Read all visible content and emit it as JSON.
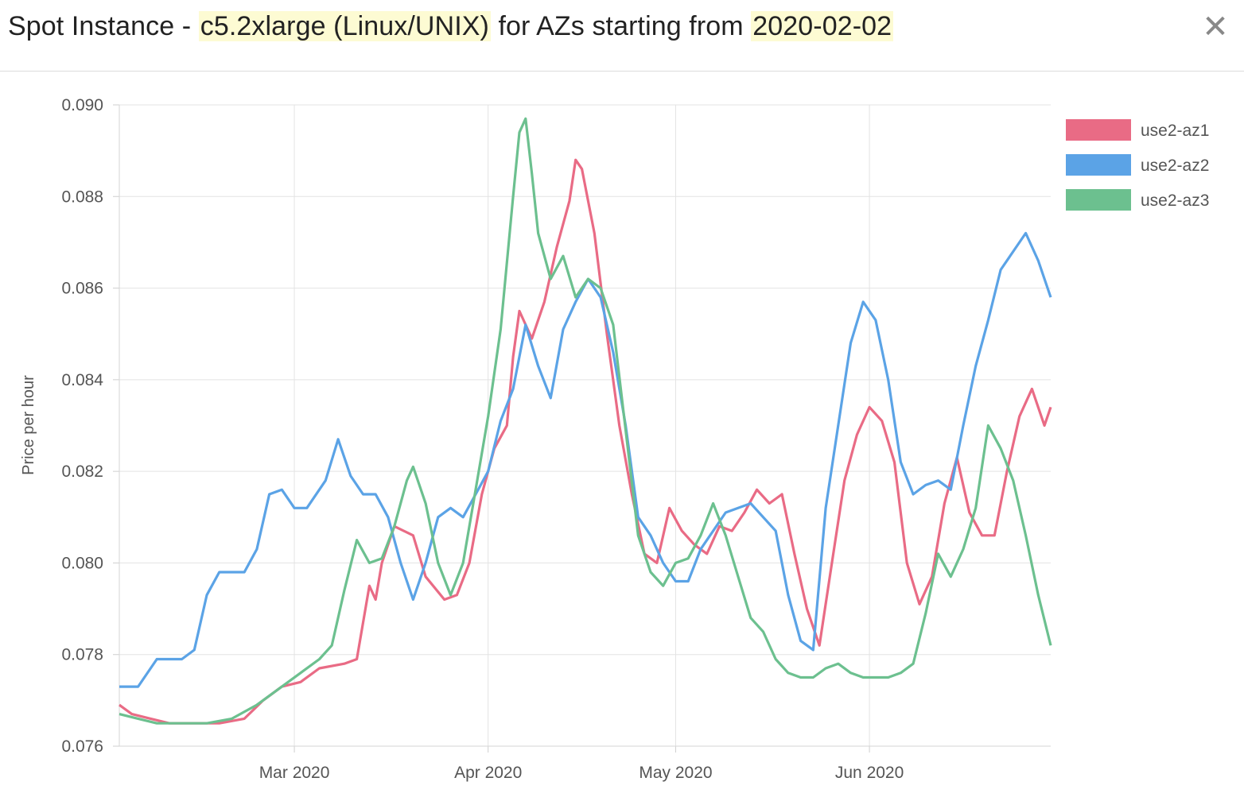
{
  "header": {
    "title_prefix": "Spot Instance - ",
    "instance": "c5.2xlarge (Linux/UNIX)",
    "title_middle": " for AZs starting from ",
    "start_date": "2020-02-02",
    "close_label": "✕"
  },
  "chart_data": {
    "type": "line",
    "title": "Spot Instance - c5.2xlarge (Linux/UNIX) for AZs starting from 2020-02-02",
    "xlabel": "",
    "ylabel": "Price per hour",
    "x_range": [
      "2020-02-02",
      "2020-06-30"
    ],
    "ylim": [
      0.076,
      0.09
    ],
    "y_ticks": [
      "0.090",
      "0.088",
      "0.086",
      "0.084",
      "0.082",
      "0.080",
      "0.078",
      "0.076"
    ],
    "x_ticks": [
      {
        "date": "2020-03-01",
        "label": "Mar 2020"
      },
      {
        "date": "2020-04-01",
        "label": "Apr 2020"
      },
      {
        "date": "2020-05-01",
        "label": "May 2020"
      },
      {
        "date": "2020-06-01",
        "label": "Jun 2020"
      }
    ],
    "grid": true,
    "legend_position": "top-right",
    "series": [
      {
        "name": "use2-az1",
        "color": "#e96b85",
        "points": [
          [
            "2020-02-02",
            0.0769
          ],
          [
            "2020-02-04",
            0.0767
          ],
          [
            "2020-02-07",
            0.0766
          ],
          [
            "2020-02-10",
            0.0765
          ],
          [
            "2020-02-14",
            0.0765
          ],
          [
            "2020-02-18",
            0.0765
          ],
          [
            "2020-02-22",
            0.0766
          ],
          [
            "2020-02-25",
            0.077
          ],
          [
            "2020-02-28",
            0.0773
          ],
          [
            "2020-03-02",
            0.0774
          ],
          [
            "2020-03-05",
            0.0777
          ],
          [
            "2020-03-09",
            0.0778
          ],
          [
            "2020-03-11",
            0.0779
          ],
          [
            "2020-03-13",
            0.0795
          ],
          [
            "2020-03-14",
            0.0792
          ],
          [
            "2020-03-15",
            0.08
          ],
          [
            "2020-03-17",
            0.0808
          ],
          [
            "2020-03-20",
            0.0806
          ],
          [
            "2020-03-22",
            0.0797
          ],
          [
            "2020-03-25",
            0.0792
          ],
          [
            "2020-03-27",
            0.0793
          ],
          [
            "2020-03-29",
            0.08
          ],
          [
            "2020-03-31",
            0.0815
          ],
          [
            "2020-04-02",
            0.0825
          ],
          [
            "2020-04-04",
            0.083
          ],
          [
            "2020-04-05",
            0.0845
          ],
          [
            "2020-04-06",
            0.0855
          ],
          [
            "2020-04-08",
            0.0849
          ],
          [
            "2020-04-10",
            0.0857
          ],
          [
            "2020-04-12",
            0.0869
          ],
          [
            "2020-04-14",
            0.0879
          ],
          [
            "2020-04-15",
            0.0888
          ],
          [
            "2020-04-16",
            0.0886
          ],
          [
            "2020-04-18",
            0.0872
          ],
          [
            "2020-04-20",
            0.085
          ],
          [
            "2020-04-22",
            0.083
          ],
          [
            "2020-04-24",
            0.0815
          ],
          [
            "2020-04-26",
            0.0802
          ],
          [
            "2020-04-28",
            0.08
          ],
          [
            "2020-04-30",
            0.0812
          ],
          [
            "2020-05-02",
            0.0807
          ],
          [
            "2020-05-04",
            0.0804
          ],
          [
            "2020-05-06",
            0.0802
          ],
          [
            "2020-05-08",
            0.0808
          ],
          [
            "2020-05-10",
            0.0807
          ],
          [
            "2020-05-12",
            0.0811
          ],
          [
            "2020-05-14",
            0.0816
          ],
          [
            "2020-05-16",
            0.0813
          ],
          [
            "2020-05-18",
            0.0815
          ],
          [
            "2020-05-20",
            0.0802
          ],
          [
            "2020-05-22",
            0.079
          ],
          [
            "2020-05-24",
            0.0782
          ],
          [
            "2020-05-26",
            0.08
          ],
          [
            "2020-05-28",
            0.0818
          ],
          [
            "2020-05-30",
            0.0828
          ],
          [
            "2020-06-01",
            0.0834
          ],
          [
            "2020-06-03",
            0.0831
          ],
          [
            "2020-06-05",
            0.0822
          ],
          [
            "2020-06-07",
            0.08
          ],
          [
            "2020-06-09",
            0.0791
          ],
          [
            "2020-06-11",
            0.0797
          ],
          [
            "2020-06-13",
            0.0813
          ],
          [
            "2020-06-15",
            0.0823
          ],
          [
            "2020-06-17",
            0.0811
          ],
          [
            "2020-06-19",
            0.0806
          ],
          [
            "2020-06-21",
            0.0806
          ],
          [
            "2020-06-23",
            0.082
          ],
          [
            "2020-06-25",
            0.0832
          ],
          [
            "2020-06-27",
            0.0838
          ],
          [
            "2020-06-29",
            0.083
          ],
          [
            "2020-06-30",
            0.0834
          ]
        ]
      },
      {
        "name": "use2-az2",
        "color": "#5ba3e6",
        "points": [
          [
            "2020-02-02",
            0.0773
          ],
          [
            "2020-02-05",
            0.0773
          ],
          [
            "2020-02-08",
            0.0779
          ],
          [
            "2020-02-12",
            0.0779
          ],
          [
            "2020-02-14",
            0.0781
          ],
          [
            "2020-02-16",
            0.0793
          ],
          [
            "2020-02-18",
            0.0798
          ],
          [
            "2020-02-20",
            0.0798
          ],
          [
            "2020-02-22",
            0.0798
          ],
          [
            "2020-02-24",
            0.0803
          ],
          [
            "2020-02-26",
            0.0815
          ],
          [
            "2020-02-28",
            0.0816
          ],
          [
            "2020-03-01",
            0.0812
          ],
          [
            "2020-03-03",
            0.0812
          ],
          [
            "2020-03-06",
            0.0818
          ],
          [
            "2020-03-08",
            0.0827
          ],
          [
            "2020-03-10",
            0.0819
          ],
          [
            "2020-03-12",
            0.0815
          ],
          [
            "2020-03-14",
            0.0815
          ],
          [
            "2020-03-16",
            0.081
          ],
          [
            "2020-03-18",
            0.08
          ],
          [
            "2020-03-20",
            0.0792
          ],
          [
            "2020-03-22",
            0.08
          ],
          [
            "2020-03-24",
            0.081
          ],
          [
            "2020-03-26",
            0.0812
          ],
          [
            "2020-03-28",
            0.081
          ],
          [
            "2020-03-30",
            0.0815
          ],
          [
            "2020-04-01",
            0.082
          ],
          [
            "2020-04-03",
            0.0831
          ],
          [
            "2020-04-05",
            0.0838
          ],
          [
            "2020-04-07",
            0.0852
          ],
          [
            "2020-04-09",
            0.0843
          ],
          [
            "2020-04-11",
            0.0836
          ],
          [
            "2020-04-13",
            0.0851
          ],
          [
            "2020-04-15",
            0.0857
          ],
          [
            "2020-04-17",
            0.0862
          ],
          [
            "2020-04-19",
            0.0858
          ],
          [
            "2020-04-21",
            0.0846
          ],
          [
            "2020-04-23",
            0.083
          ],
          [
            "2020-04-25",
            0.081
          ],
          [
            "2020-04-27",
            0.0806
          ],
          [
            "2020-04-29",
            0.08
          ],
          [
            "2020-05-01",
            0.0796
          ],
          [
            "2020-05-03",
            0.0796
          ],
          [
            "2020-05-05",
            0.0803
          ],
          [
            "2020-05-07",
            0.0807
          ],
          [
            "2020-05-09",
            0.0811
          ],
          [
            "2020-05-11",
            0.0812
          ],
          [
            "2020-05-13",
            0.0813
          ],
          [
            "2020-05-15",
            0.081
          ],
          [
            "2020-05-17",
            0.0807
          ],
          [
            "2020-05-19",
            0.0793
          ],
          [
            "2020-05-21",
            0.0783
          ],
          [
            "2020-05-23",
            0.0781
          ],
          [
            "2020-05-25",
            0.0812
          ],
          [
            "2020-05-27",
            0.083
          ],
          [
            "2020-05-29",
            0.0848
          ],
          [
            "2020-05-31",
            0.0857
          ],
          [
            "2020-06-02",
            0.0853
          ],
          [
            "2020-06-04",
            0.084
          ],
          [
            "2020-06-06",
            0.0822
          ],
          [
            "2020-06-08",
            0.0815
          ],
          [
            "2020-06-10",
            0.0817
          ],
          [
            "2020-06-12",
            0.0818
          ],
          [
            "2020-06-14",
            0.0816
          ],
          [
            "2020-06-16",
            0.083
          ],
          [
            "2020-06-18",
            0.0843
          ],
          [
            "2020-06-20",
            0.0853
          ],
          [
            "2020-06-22",
            0.0864
          ],
          [
            "2020-06-24",
            0.0868
          ],
          [
            "2020-06-26",
            0.0872
          ],
          [
            "2020-06-28",
            0.0866
          ],
          [
            "2020-06-30",
            0.0858
          ]
        ]
      },
      {
        "name": "use2-az3",
        "color": "#6cc08f",
        "points": [
          [
            "2020-02-02",
            0.0767
          ],
          [
            "2020-02-05",
            0.0766
          ],
          [
            "2020-02-08",
            0.0765
          ],
          [
            "2020-02-12",
            0.0765
          ],
          [
            "2020-02-16",
            0.0765
          ],
          [
            "2020-02-20",
            0.0766
          ],
          [
            "2020-02-24",
            0.0769
          ],
          [
            "2020-02-27",
            0.0772
          ],
          [
            "2020-03-02",
            0.0776
          ],
          [
            "2020-03-05",
            0.0779
          ],
          [
            "2020-03-07",
            0.0782
          ],
          [
            "2020-03-09",
            0.0794
          ],
          [
            "2020-03-11",
            0.0805
          ],
          [
            "2020-03-13",
            0.08
          ],
          [
            "2020-03-15",
            0.0801
          ],
          [
            "2020-03-17",
            0.0808
          ],
          [
            "2020-03-19",
            0.0818
          ],
          [
            "2020-03-20",
            0.0821
          ],
          [
            "2020-03-22",
            0.0813
          ],
          [
            "2020-03-24",
            0.08
          ],
          [
            "2020-03-26",
            0.0793
          ],
          [
            "2020-03-28",
            0.08
          ],
          [
            "2020-03-30",
            0.0816
          ],
          [
            "2020-04-01",
            0.0832
          ],
          [
            "2020-04-03",
            0.0851
          ],
          [
            "2020-04-05",
            0.088
          ],
          [
            "2020-04-06",
            0.0894
          ],
          [
            "2020-04-07",
            0.0897
          ],
          [
            "2020-04-08",
            0.0885
          ],
          [
            "2020-04-09",
            0.0872
          ],
          [
            "2020-04-11",
            0.0862
          ],
          [
            "2020-04-13",
            0.0867
          ],
          [
            "2020-04-15",
            0.0858
          ],
          [
            "2020-04-17",
            0.0862
          ],
          [
            "2020-04-19",
            0.086
          ],
          [
            "2020-04-21",
            0.0852
          ],
          [
            "2020-04-23",
            0.0829
          ],
          [
            "2020-04-25",
            0.0806
          ],
          [
            "2020-04-27",
            0.0798
          ],
          [
            "2020-04-29",
            0.0795
          ],
          [
            "2020-05-01",
            0.08
          ],
          [
            "2020-05-03",
            0.0801
          ],
          [
            "2020-05-05",
            0.0806
          ],
          [
            "2020-05-07",
            0.0813
          ],
          [
            "2020-05-09",
            0.0806
          ],
          [
            "2020-05-11",
            0.0797
          ],
          [
            "2020-05-13",
            0.0788
          ],
          [
            "2020-05-15",
            0.0785
          ],
          [
            "2020-05-17",
            0.0779
          ],
          [
            "2020-05-19",
            0.0776
          ],
          [
            "2020-05-21",
            0.0775
          ],
          [
            "2020-05-23",
            0.0775
          ],
          [
            "2020-05-25",
            0.0777
          ],
          [
            "2020-05-27",
            0.0778
          ],
          [
            "2020-05-29",
            0.0776
          ],
          [
            "2020-05-31",
            0.0775
          ],
          [
            "2020-06-02",
            0.0775
          ],
          [
            "2020-06-04",
            0.0775
          ],
          [
            "2020-06-06",
            0.0776
          ],
          [
            "2020-06-08",
            0.0778
          ],
          [
            "2020-06-10",
            0.0789
          ],
          [
            "2020-06-12",
            0.0802
          ],
          [
            "2020-06-14",
            0.0797
          ],
          [
            "2020-06-16",
            0.0803
          ],
          [
            "2020-06-18",
            0.0812
          ],
          [
            "2020-06-20",
            0.083
          ],
          [
            "2020-06-22",
            0.0825
          ],
          [
            "2020-06-24",
            0.0818
          ],
          [
            "2020-06-26",
            0.0806
          ],
          [
            "2020-06-28",
            0.0793
          ],
          [
            "2020-06-30",
            0.0782
          ]
        ]
      }
    ]
  }
}
